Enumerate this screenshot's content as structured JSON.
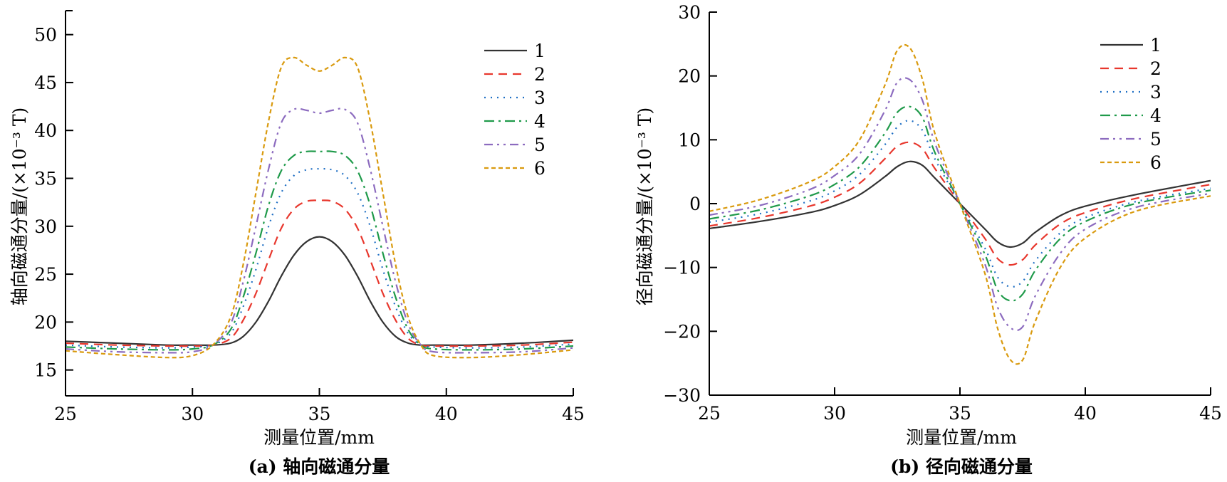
{
  "chart_data": [
    {
      "id": "a",
      "type": "line",
      "caption": "(a) 轴向磁通分量",
      "xlabel": "测量位置/mm",
      "ylabel": "轴向磁通分量/(×10⁻³ T)",
      "xlim": [
        25,
        45
      ],
      "ylim": [
        12.3,
        52.5
      ],
      "xticks": [
        25,
        30,
        35,
        40,
        45
      ],
      "yticks": [
        15,
        20,
        25,
        30,
        35,
        40,
        45,
        50
      ],
      "grid": false,
      "legend_position": "top-right",
      "series": [
        {
          "name": "1",
          "color": "#333333",
          "dash": "solid",
          "x": [
            25,
            27,
            29,
            30,
            30.8,
            31.5,
            32,
            32.5,
            33,
            33.5,
            34,
            34.5,
            35,
            35.5,
            36,
            36.5,
            37,
            37.5,
            38,
            38.5,
            39,
            39.5,
            41,
            43,
            45
          ],
          "y": [
            18.0,
            17.8,
            17.6,
            17.6,
            17.6,
            17.8,
            18.5,
            20.0,
            22.2,
            24.8,
            27.0,
            28.4,
            28.9,
            28.4,
            27.0,
            24.8,
            22.2,
            20.0,
            18.5,
            17.8,
            17.6,
            17.6,
            17.6,
            17.8,
            18.1
          ]
        },
        {
          "name": "2",
          "color": "#e8372d",
          "dash": "12,8",
          "x": [
            25,
            27,
            29,
            30,
            30.8,
            31.5,
            32,
            32.5,
            33,
            33.5,
            34,
            34.5,
            35,
            35.5,
            36,
            36.5,
            37,
            37.5,
            38,
            38.5,
            39,
            39.5,
            41,
            43,
            45
          ],
          "y": [
            17.8,
            17.6,
            17.5,
            17.5,
            17.6,
            18.3,
            20.2,
            23.0,
            26.5,
            29.8,
            31.8,
            32.6,
            32.7,
            32.6,
            31.8,
            29.8,
            26.5,
            23.0,
            20.2,
            18.3,
            17.6,
            17.5,
            17.5,
            17.6,
            17.9
          ]
        },
        {
          "name": "3",
          "color": "#1f6fc4",
          "dash": "2,7",
          "x": [
            25,
            27,
            29,
            30,
            30.8,
            31.5,
            32,
            32.5,
            33,
            33.5,
            34,
            34.5,
            35,
            35.5,
            36,
            36.5,
            37,
            37.5,
            38,
            38.5,
            39,
            39.5,
            41,
            43,
            45
          ],
          "y": [
            17.6,
            17.4,
            17.3,
            17.4,
            17.6,
            18.8,
            21.6,
            25.5,
            30.0,
            33.5,
            35.3,
            35.9,
            36.0,
            35.9,
            35.3,
            33.5,
            30.0,
            25.5,
            21.6,
            18.8,
            17.6,
            17.4,
            17.3,
            17.4,
            17.7
          ]
        },
        {
          "name": "4",
          "color": "#1f9a4a",
          "dash": "14,6,3,6",
          "x": [
            25,
            27,
            29,
            30,
            30.8,
            31.5,
            32,
            32.5,
            33,
            33.5,
            34,
            34.5,
            35,
            35.5,
            36,
            36.5,
            37,
            37.5,
            38,
            38.5,
            39,
            39.5,
            41,
            43,
            45
          ],
          "y": [
            17.4,
            17.2,
            17.1,
            17.2,
            17.6,
            19.2,
            22.6,
            27.2,
            32.2,
            35.8,
            37.4,
            37.8,
            37.8,
            37.8,
            37.4,
            35.8,
            32.2,
            27.2,
            22.6,
            19.2,
            17.6,
            17.2,
            17.1,
            17.2,
            17.5
          ]
        },
        {
          "name": "5",
          "color": "#8c6bbf",
          "dash": "12,6,3,6,3,6",
          "x": [
            25,
            27,
            29,
            30,
            30.8,
            31.5,
            32,
            32.5,
            33,
            33.5,
            34,
            34.5,
            35,
            35.5,
            36,
            36.5,
            37,
            37.5,
            38,
            38.5,
            39,
            39.5,
            41,
            43,
            45
          ],
          "y": [
            17.2,
            16.9,
            16.8,
            16.9,
            17.6,
            19.8,
            24.2,
            30.0,
            36.0,
            40.8,
            42.2,
            42.1,
            41.8,
            42.1,
            42.2,
            40.8,
            36.0,
            30.0,
            24.2,
            19.8,
            17.6,
            16.9,
            16.8,
            16.9,
            17.3
          ]
        },
        {
          "name": "6",
          "color": "#d99a0e",
          "dash": "6,4",
          "x": [
            25,
            27,
            29,
            30,
            30.8,
            31.5,
            32,
            32.5,
            33,
            33.5,
            34,
            34.5,
            35,
            35.5,
            36,
            36.5,
            37,
            37.5,
            38,
            38.5,
            39,
            39.5,
            41,
            43,
            45
          ],
          "y": [
            17.0,
            16.6,
            16.3,
            16.5,
            17.6,
            20.5,
            26.0,
            33.5,
            41.0,
            46.6,
            47.6,
            46.8,
            46.2,
            46.8,
            47.6,
            46.6,
            41.0,
            33.5,
            26.0,
            20.5,
            17.6,
            16.5,
            16.3,
            16.6,
            17.1
          ]
        }
      ]
    },
    {
      "id": "b",
      "type": "line",
      "caption": "(b) 径向磁通分量",
      "xlabel": "测量位置/mm",
      "ylabel": "径向磁通分量/(×10⁻³ T)",
      "xlim": [
        25,
        45
      ],
      "ylim": [
        -30,
        30
      ],
      "xticks": [
        25,
        30,
        35,
        40,
        45
      ],
      "yticks": [
        -30,
        -20,
        -10,
        0,
        10,
        20,
        30
      ],
      "grid": false,
      "legend_position": "top-right",
      "series": [
        {
          "name": "1",
          "color": "#333333",
          "dash": "solid",
          "x": [
            25,
            27,
            29,
            30,
            31,
            32,
            32.5,
            33,
            33.5,
            34,
            35,
            36,
            36.5,
            37,
            37.5,
            38,
            39,
            40,
            42,
            45
          ],
          "y": [
            -3.9,
            -2.8,
            -1.4,
            -0.3,
            1.4,
            4.2,
            5.8,
            6.6,
            6.0,
            4.0,
            0.0,
            -4.0,
            -6.0,
            -6.8,
            -6.2,
            -4.5,
            -1.9,
            -0.4,
            1.4,
            3.6
          ]
        },
        {
          "name": "2",
          "color": "#e8372d",
          "dash": "12,8",
          "x": [
            25,
            27,
            29,
            30,
            31,
            32,
            32.5,
            33,
            33.5,
            34,
            35,
            36,
            36.5,
            37,
            37.5,
            38,
            39,
            40,
            42,
            45
          ],
          "y": [
            -3.5,
            -2.2,
            -0.4,
            1.0,
            3.2,
            7.0,
            9.0,
            9.6,
            8.6,
            5.5,
            0.0,
            -5.5,
            -8.6,
            -9.6,
            -8.8,
            -6.5,
            -3.2,
            -1.4,
            0.8,
            3.0
          ]
        },
        {
          "name": "3",
          "color": "#1f6fc4",
          "dash": "2,7",
          "x": [
            25,
            27,
            29,
            30,
            31,
            32,
            32.5,
            33,
            33.5,
            34,
            35,
            36,
            36.5,
            37,
            37.5,
            38,
            39,
            40,
            42,
            45
          ],
          "y": [
            -2.9,
            -1.6,
            0.4,
            2.0,
            4.6,
            9.2,
            12.0,
            13.0,
            11.5,
            7.0,
            0.0,
            -7.0,
            -11.5,
            -13.0,
            -12.2,
            -9.0,
            -4.6,
            -2.2,
            0.3,
            2.4
          ]
        },
        {
          "name": "4",
          "color": "#1f9a4a",
          "dash": "14,6,3,6",
          "x": [
            25,
            27,
            29,
            30,
            31,
            32,
            32.5,
            33,
            33.5,
            34,
            35,
            36,
            36.5,
            37,
            37.5,
            38,
            39,
            40,
            42,
            45
          ],
          "y": [
            -2.4,
            -1.0,
            1.2,
            3.0,
            5.8,
            11.0,
            14.3,
            15.2,
            13.5,
            8.0,
            0.0,
            -8.0,
            -13.5,
            -15.2,
            -14.2,
            -10.5,
            -5.5,
            -2.8,
            0.0,
            2.1
          ]
        },
        {
          "name": "5",
          "color": "#8c6bbf",
          "dash": "12,6,3,6,3,6",
          "x": [
            25,
            27,
            29,
            30,
            31,
            32,
            32.5,
            33,
            33.5,
            34,
            35,
            36,
            36.5,
            37,
            37.5,
            38,
            39,
            40,
            42,
            45
          ],
          "y": [
            -1.8,
            -0.3,
            2.2,
            4.4,
            7.8,
            14.5,
            19.0,
            19.4,
            16.2,
            9.5,
            0.0,
            -9.5,
            -16.2,
            -19.4,
            -19.3,
            -14.5,
            -7.8,
            -4.0,
            -0.6,
            1.6
          ]
        },
        {
          "name": "6",
          "color": "#d99a0e",
          "dash": "6,4",
          "x": [
            25,
            27,
            29,
            30,
            31,
            32,
            32.5,
            33,
            33.5,
            34,
            35,
            36,
            36.5,
            37,
            37.5,
            38,
            39,
            40,
            42,
            45
          ],
          "y": [
            -1.2,
            0.6,
            3.4,
            5.8,
            10.0,
            18.5,
            24.0,
            24.4,
            19.5,
            11.0,
            0.0,
            -11.0,
            -19.5,
            -24.4,
            -24.5,
            -18.5,
            -10.0,
            -5.4,
            -1.2,
            1.2
          ]
        }
      ]
    }
  ]
}
